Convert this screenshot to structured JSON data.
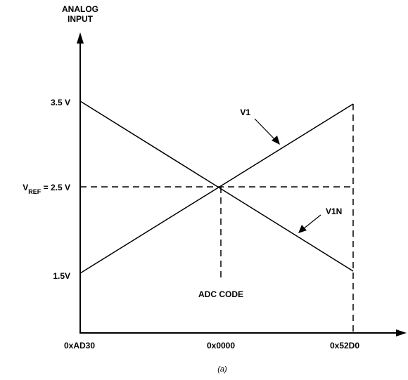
{
  "y_axis_title": [
    "ANALOG",
    "INPUT"
  ],
  "y_ticks": {
    "top": "3.5 V",
    "vref_prefix": "V",
    "vref_sub": "REF",
    "vref_suffix": " = 2.5 V",
    "bottom": "1.5V"
  },
  "x_ticks": {
    "left": "0xAD30",
    "mid": "0x0000",
    "right": "0x52D0"
  },
  "labels": {
    "v1": "V1",
    "v1n": "V1N",
    "adc_code": "ADC CODE"
  },
  "caption": "(a)",
  "chart_data": {
    "type": "line",
    "ylabel": "ANALOG INPUT",
    "xlabel": "ADC CODE",
    "x": [
      "0xAD30",
      "0x0000",
      "0x52D0"
    ],
    "yticks": [
      "1.5V",
      "2.5 V",
      "3.5 V"
    ],
    "series": [
      {
        "name": "V1",
        "values": [
          1.5,
          2.5,
          3.5
        ]
      },
      {
        "name": "V1N",
        "values": [
          3.5,
          2.5,
          1.5
        ]
      }
    ],
    "reference": {
      "name": "VREF",
      "value": 2.5
    }
  }
}
